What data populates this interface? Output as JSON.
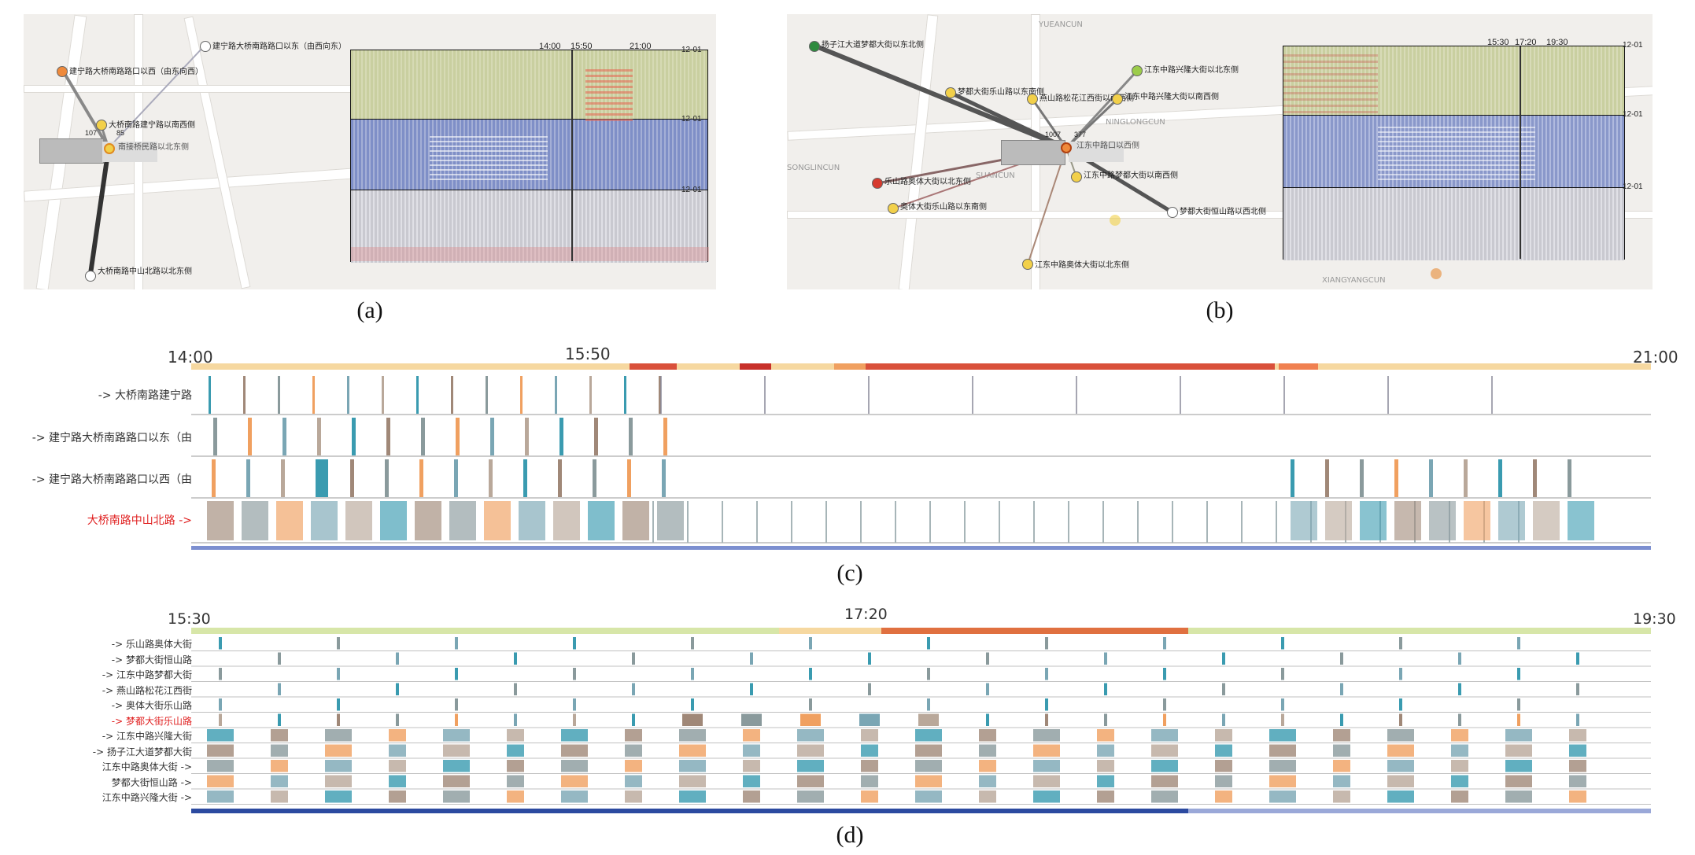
{
  "panel_a": {
    "caption": "(a)",
    "nodes": [
      {
        "label": "建宁路大桥南路路口以东（由西向东）",
        "color": "#ffffff"
      },
      {
        "label": "建宁路大桥南路路口以西（由东向西）",
        "color": "#ef8a3c"
      },
      {
        "label": "大桥南路建宁路以南西侧",
        "color": "#f2d04a"
      },
      {
        "label": "南接桥民路以北东侧",
        "color": "#f2d04a"
      },
      {
        "label": "大桥南路中山北路以北东侧",
        "color": "#ffffff"
      }
    ],
    "bar_numbers": [
      "107",
      "85"
    ],
    "heatmap": {
      "ticks": [
        "14:00",
        "15:50",
        "21:00"
      ],
      "date_labels": [
        "12-01",
        "12-01",
        "12-01"
      ]
    }
  },
  "panel_b": {
    "caption": "(b)",
    "map_labels": [
      "YUEANCUN",
      "NINGLONGCUN",
      "SONGLINCUN",
      "SUANCUN",
      "XIANGYANGCUN"
    ],
    "nodes": [
      {
        "label": "扬子江大道梦都大街以东北侧",
        "color": "#2e8b3e"
      },
      {
        "label": "梦都大街乐山路以东南侧",
        "color": "#f2d04a"
      },
      {
        "label": "燕山路松花江西街以南西侧",
        "color": "#f2d04a"
      },
      {
        "label": "江东中路兴隆大街以北东侧",
        "color": "#9ccc4a"
      },
      {
        "label": "江东中路兴隆大街以南西侧",
        "color": "#f2d04a"
      },
      {
        "label": "江东中路口以西侧",
        "color": "#ef8a3c"
      },
      {
        "label": "江东中路梦都大街以南西侧",
        "color": "#f2d04a"
      },
      {
        "label": "乐山路奥体大街以北东侧",
        "color": "#d63a2e"
      },
      {
        "label": "奥体大街乐山路以东南侧",
        "color": "#f2d04a"
      },
      {
        "label": "梦都大街恒山路以西北侧",
        "color": "#ffffff"
      },
      {
        "label": "江东中路奥体大街以北东侧",
        "color": "#f2d04a"
      }
    ],
    "bar_numbers": [
      "1007",
      "377"
    ],
    "heatmap": {
      "ticks": [
        "15:30",
        "17:20",
        "19:30"
      ],
      "date_labels": [
        "12-01",
        "12-01",
        "12-01"
      ]
    }
  },
  "panel_c": {
    "caption": "(c)",
    "time_start": "14:00",
    "time_mid": "15:50",
    "time_end": "21:00",
    "rows": [
      {
        "label": "-> 大桥南路建宁路",
        "color": "#333333"
      },
      {
        "label": "-> 建宁路大桥南路路口以东（由",
        "color": "#333333"
      },
      {
        "label": "-> 建宁路大桥南路路口以西（由",
        "color": "#333333"
      },
      {
        "label": "大桥南路中山北路 ->",
        "color": "#e02020"
      }
    ]
  },
  "panel_d": {
    "caption": "(d)",
    "time_start": "15:30",
    "time_mid": "17:20",
    "time_end": "19:30",
    "rows": [
      {
        "label": "-> 乐山路奥体大街",
        "color": "#333333"
      },
      {
        "label": "-> 梦都大街恒山路",
        "color": "#333333"
      },
      {
        "label": "-> 江东中路梦都大街",
        "color": "#333333"
      },
      {
        "label": "-> 燕山路松花江西街",
        "color": "#333333"
      },
      {
        "label": "-> 奥体大街乐山路",
        "color": "#333333"
      },
      {
        "label": "-> 梦都大街乐山路",
        "color": "#e02020"
      },
      {
        "label": "-> 江东中路兴隆大街",
        "color": "#333333"
      },
      {
        "label": "-> 扬子江大道梦都大街",
        "color": "#333333"
      },
      {
        "label": "江东中路奥体大街 ->",
        "color": "#333333"
      },
      {
        "label": "梦都大街恒山路 ->",
        "color": "#333333"
      },
      {
        "label": "江东中路兴隆大街 ->",
        "color": "#333333"
      }
    ]
  },
  "colors": {
    "heat_top": "#c9cfa0",
    "heat_mid": "#7f8fc7",
    "heat_bottom": "#cfcfd6",
    "teal": "#3a9bb0",
    "brown": "#a08878",
    "orange": "#f0a060",
    "grey": "#8a9a9c"
  }
}
